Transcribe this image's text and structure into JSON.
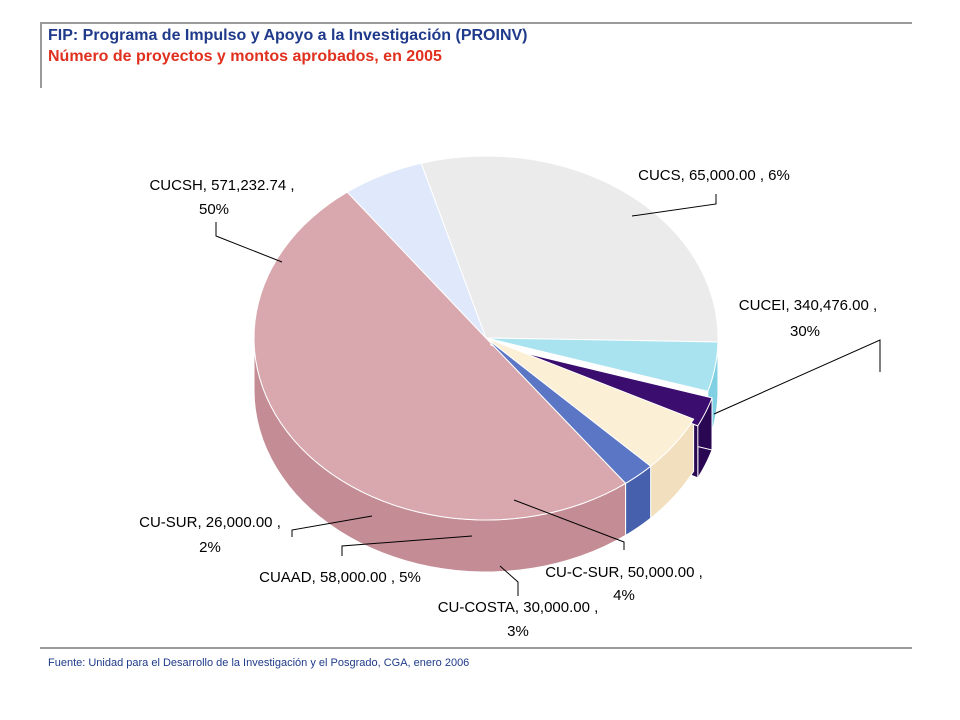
{
  "header": {
    "title": "FIP: Programa de Impulso y Apoyo a la Investigación (PROINV)",
    "subtitle": "Número de proyectos y montos aprobados, en 2005"
  },
  "footer": {
    "source": "Fuente: Unidad para el Desarrollo de la Investigación y el Posgrado, CGA, enero 2006"
  },
  "chart_data": {
    "type": "pie",
    "style": "3d",
    "title": "Número de proyectos y montos aprobados, en 2005",
    "slices": [
      {
        "label": "CUCSH",
        "value": 571232.74,
        "value_text": "571,232.74",
        "percent": 50,
        "color": "#d9a8ae",
        "side": "#c48c94"
      },
      {
        "label": "CUCS",
        "value": 65000.0,
        "value_text": "65,000.00",
        "percent": 6,
        "color": "#dfe9fb",
        "side": "#c3d3ee"
      },
      {
        "label": "CUCEI",
        "value": 340476.0,
        "value_text": "340,476.00",
        "percent": 30,
        "color": "#ebebeb",
        "side": "#d6d6d6"
      },
      {
        "label": "CU-C-SUR",
        "value": 50000.0,
        "value_text": "50,000.00",
        "percent": 4,
        "color": "#a8e3ef",
        "side": "#7fd0e2"
      },
      {
        "label": "CU-COSTA",
        "value": 30000.0,
        "value_text": "30,000.00",
        "percent": 3,
        "color": "#3b0d6e",
        "side": "#2a0753"
      },
      {
        "label": "CUAAD",
        "value": 58000.0,
        "value_text": "58,000.00",
        "percent": 5,
        "color": "#fbefd6",
        "side": "#f1dfbd"
      },
      {
        "label": "CU-SUR",
        "value": 26000.0,
        "value_text": "26,000.00",
        "percent": 2,
        "color": "#5b76c4",
        "side": "#4660ad"
      }
    ],
    "labels": [
      {
        "lines": [
          "CUCSH, 571,232.74 ,",
          "50%"
        ]
      },
      {
        "lines": [
          "CUCS, 65,000.00 , 6%"
        ]
      },
      {
        "lines": [
          "CUCEI, 340,476.00 ,",
          "30%"
        ]
      },
      {
        "lines": [
          "CU-C-SUR, 50,000.00 ,",
          "4%"
        ]
      },
      {
        "lines": [
          "CU-COSTA, 30,000.00 ,",
          "3%"
        ]
      },
      {
        "lines": [
          "CUAAD, 58,000.00 , 5%"
        ]
      },
      {
        "lines": [
          "CU-SUR, 26,000.00 ,",
          "2%"
        ]
      }
    ]
  }
}
